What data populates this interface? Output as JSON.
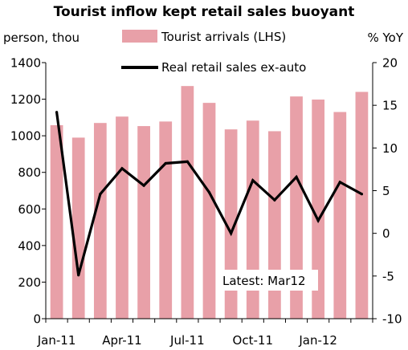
{
  "chart_data": {
    "type": "bar+line",
    "title": "Tourist inflow kept retail sales buoyant",
    "left_unit": "person, thou",
    "right_unit": "% YoY",
    "left_ylim": [
      0,
      1400
    ],
    "left_ticks": [
      "0",
      "200",
      "400",
      "600",
      "800",
      "1000",
      "1200",
      "1400"
    ],
    "right_ylim": [
      -10,
      20
    ],
    "right_ticks": [
      "-10",
      "-5",
      "0",
      "5",
      "10",
      "15",
      "20"
    ],
    "x_tick_labels": [
      {
        "index": 0,
        "label": "Jan-11"
      },
      {
        "index": 3,
        "label": "Apr-11"
      },
      {
        "index": 6,
        "label": "Jul-11"
      },
      {
        "index": 9,
        "label": "Oct-11"
      },
      {
        "index": 12,
        "label": "Jan-12"
      }
    ],
    "series": [
      {
        "name": "Tourist arrivals (LHS)",
        "type": "bar",
        "axis": "left",
        "color": "#e8a0a8",
        "values": [
          1058,
          990,
          1070,
          1105,
          1053,
          1078,
          1272,
          1180,
          1035,
          1083,
          1025,
          1215,
          1198,
          1130,
          1240
        ]
      },
      {
        "name": "Real retail sales ex-auto",
        "type": "line",
        "axis": "right",
        "color": "#000000",
        "values": [
          14.2,
          -4.9,
          4.6,
          7.6,
          5.6,
          8.2,
          8.4,
          4.8,
          0,
          6.2,
          3.9,
          6.6,
          1.5,
          6,
          4.6
        ]
      }
    ],
    "annotation": "Latest: Mar12"
  }
}
